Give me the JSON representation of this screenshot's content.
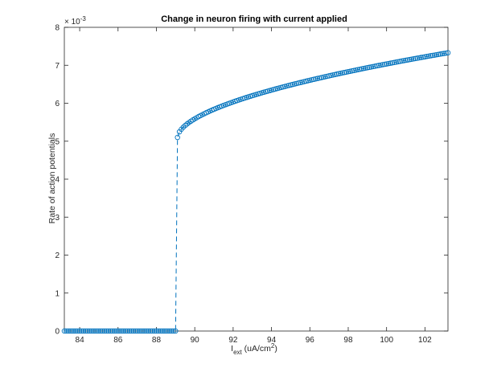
{
  "chart_data": {
    "type": "line",
    "title": "Change in neuron firing with current applied",
    "xlabel": {
      "main": "I",
      "subscript": "ext",
      "units_prefix": " (uA/cm",
      "units_superscript": "2",
      "units_suffix": ")"
    },
    "ylabel": "Rate of action potentials",
    "y_exponent_base": "× 10",
    "y_exponent_power": "-3",
    "xlim": [
      83.2,
      103.2
    ],
    "ylim": [
      0,
      8
    ],
    "xticks": [
      84,
      86,
      88,
      90,
      92,
      94,
      96,
      98,
      100,
      102
    ],
    "xtick_labels": [
      "84",
      "86",
      "88",
      "90",
      "92",
      "94",
      "96",
      "98",
      "100",
      "102"
    ],
    "yticks": [
      0,
      1,
      2,
      3,
      4,
      5,
      6,
      7,
      8
    ],
    "ytick_labels": [
      "0",
      "1",
      "2",
      "3",
      "4",
      "5",
      "6",
      "7",
      "8"
    ],
    "grid": false,
    "series_color": "#0072BD",
    "line_style": "dashed",
    "marker": "circle",
    "x_start": 83.2,
    "x_end": 103.2,
    "x_step": 0.1,
    "threshold_x": 89.1,
    "rest_value": 0,
    "firing_fit": {
      "a": 2.32,
      "b": 1.0,
      "offset": 0.0,
      "x0": 89.1,
      "y_at_threshold": 5.1,
      "y_at_end": 7.33
    }
  }
}
